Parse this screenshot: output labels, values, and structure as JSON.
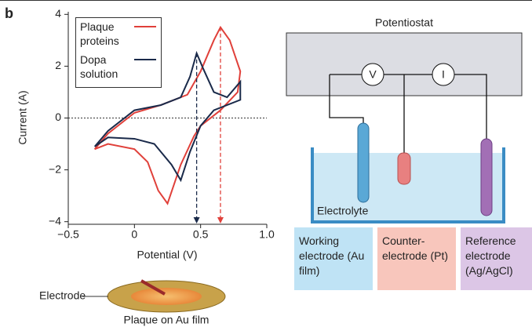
{
  "panel_label": "b",
  "chart_data": {
    "type": "line",
    "xlabel": "Potential (V)",
    "ylabel": "Current (A)",
    "xlim": [
      -0.5,
      1.0
    ],
    "ylim": [
      -4.1,
      4.1
    ],
    "xticks": [
      {
        "value": -0.5,
        "label": "−0.5"
      },
      0,
      0.5,
      {
        "value": 1,
        "label": "1.0"
      }
    ],
    "yticks": [
      {
        "value": -4,
        "label": "−4"
      },
      {
        "value": -2,
        "label": "−2"
      },
      0,
      2,
      4
    ],
    "hline": 0,
    "series": [
      {
        "name": "Plaque proteins",
        "color": "#e0403a",
        "x": [
          -0.3,
          -0.2,
          0,
          0.2,
          0.4,
          0.5,
          0.6,
          0.65,
          0.72,
          0.8,
          0.78,
          0.65,
          0.5,
          0.45,
          0.35,
          0.25,
          0.18,
          0.1,
          0,
          -0.2,
          -0.3
        ],
        "values": [
          -1.2,
          -0.6,
          0.2,
          0.5,
          0.9,
          1.8,
          3.0,
          3.5,
          3.0,
          1.8,
          1.0,
          0.3,
          -0.3,
          -0.7,
          -1.8,
          -3.3,
          -2.8,
          -1.7,
          -1.2,
          -1.0,
          -1.2
        ]
      },
      {
        "name": "Dopa solution",
        "color": "#1a2a4a",
        "x": [
          -0.3,
          -0.2,
          0,
          0.2,
          0.35,
          0.42,
          0.47,
          0.52,
          0.6,
          0.7,
          0.8,
          0.8,
          0.6,
          0.5,
          0.42,
          0.35,
          0.28,
          0.15,
          0,
          -0.2,
          -0.3
        ],
        "values": [
          -1.1,
          -0.5,
          0.3,
          0.5,
          0.8,
          1.6,
          2.5,
          1.9,
          1.0,
          0.8,
          1.4,
          0.7,
          0.3,
          -0.3,
          -1.3,
          -2.4,
          -1.8,
          -1.0,
          -0.8,
          -0.75,
          -1.1
        ]
      }
    ],
    "markers": [
      {
        "x": 0.47,
        "y": 2.5,
        "color": "#1a2a4a"
      },
      {
        "x": 0.65,
        "y": 3.5,
        "color": "#e0403a"
      }
    ]
  },
  "diagram": {
    "potentiostat": "Potentiostat",
    "voltmeter": "V",
    "ammeter": "I",
    "electrolyte": "Electrolyte",
    "boxes": [
      "Working electrode (Au film)",
      "Counter-electrode (Pt)",
      "Reference electrode (Ag/AgCl)"
    ],
    "electrode": "Electrode",
    "plaque": "Plaque on Au film"
  }
}
